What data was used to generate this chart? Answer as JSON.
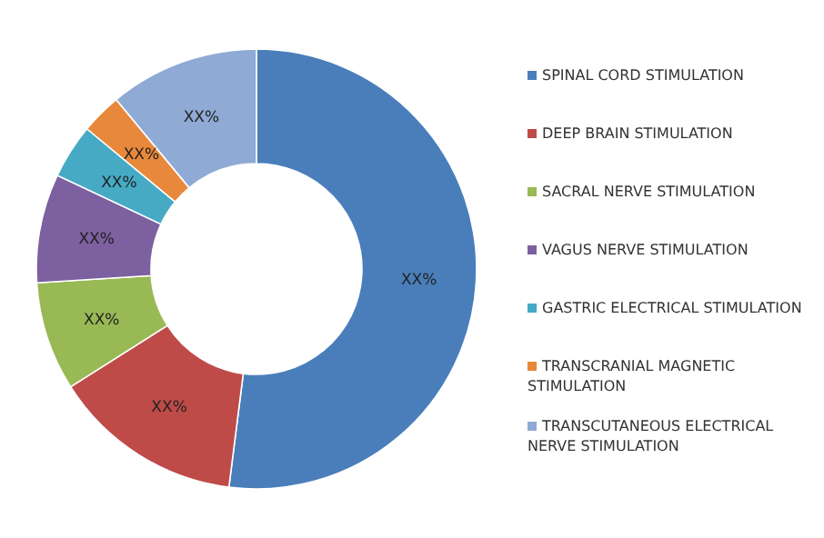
{
  "chart_data": {
    "type": "donut",
    "categories": [
      "SPINAL CORD STIMULATION",
      "DEEP BRAIN STIMULATION",
      "SACRAL NERVE STIMULATION",
      "VAGUS NERVE STIMULATION",
      "GASTRIC ELECTRICAL STIMULATION",
      "TRANSCRANIAL MAGNETIC STIMULATION",
      "TRANSCUTANEOUS ELECTRICAL NERVE STIMULATION"
    ],
    "values": [
      52,
      14,
      8,
      8,
      4,
      3,
      11
    ],
    "colors": [
      "#4a7ebb",
      "#be4b48",
      "#98b954",
      "#7d60a0",
      "#46aac5",
      "#e8883a",
      "#8faad4"
    ],
    "value_labels": [
      "XX%",
      "XX%",
      "XX%",
      "XX%",
      "XX%",
      "XX%",
      "XX%"
    ],
    "legend": "right"
  }
}
